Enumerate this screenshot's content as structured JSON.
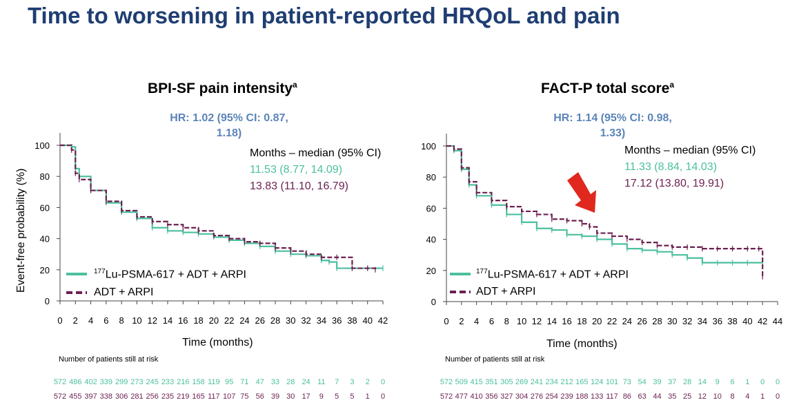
{
  "title": "Time to worsening in patient-reported HRQoL and pain",
  "colors": {
    "title": "#1f3e72",
    "hr": "#5b84b8",
    "lu": "#4bbf9e",
    "adt": "#6b1f4f",
    "arrow": "#e0281e"
  },
  "chart_data": [
    {
      "type": "line",
      "title": "BPI-SF pain intensity",
      "title_sup": "a",
      "hr_line1": "HR: 1.02 (95% CI: 0.87,",
      "hr_line2": "1.18)",
      "median_header": "Months – median (95% CI)",
      "ylabel": "Event-free probability (%)",
      "xlabel": "Time (months)",
      "ylim": [
        0,
        100
      ],
      "yticks": [
        "0",
        "20",
        "40",
        "60",
        "80",
        "100"
      ],
      "xlim": [
        0,
        42
      ],
      "xticks": [
        "0",
        "2",
        "4",
        "6",
        "8",
        "10",
        "12",
        "14",
        "16",
        "18",
        "20",
        "22",
        "24",
        "26",
        "28",
        "30",
        "32",
        "34",
        "36",
        "38",
        "40",
        "42"
      ],
      "series": [
        {
          "name_sup": "177",
          "name": "Lu-PSMA-617 + ADT + ARPI",
          "median": "11.53 (8.77, 14.09)",
          "x": [
            0,
            1.5,
            2,
            2.5,
            4,
            6,
            8,
            10,
            12,
            14,
            16,
            18,
            20,
            22,
            24,
            26,
            28,
            30,
            32,
            34,
            35,
            36,
            38,
            40,
            42
          ],
          "y": [
            100,
            99,
            85,
            80,
            71,
            63,
            57,
            53,
            47,
            45,
            44,
            43,
            41,
            39,
            37,
            35,
            32,
            30,
            29,
            26,
            25,
            21,
            21,
            21,
            21
          ]
        },
        {
          "name": "ADT + ARPI",
          "median": "13.83 (11.10, 16.79)",
          "x": [
            0,
            1.5,
            2,
            2.5,
            4,
            6,
            8,
            10,
            12,
            14,
            16,
            18,
            20,
            22,
            24,
            26,
            28,
            30,
            32,
            34,
            36,
            38,
            40,
            41
          ],
          "y": [
            100,
            97,
            82,
            78,
            71,
            64,
            58,
            54,
            51,
            49,
            47,
            45,
            42,
            40,
            38,
            37,
            34,
            32,
            30,
            28,
            28,
            21,
            21,
            20
          ]
        }
      ],
      "risk_title": "Number of patients still at risk",
      "risk_lu": [
        "572",
        "486",
        "402",
        "339",
        "299",
        "273",
        "245",
        "233",
        "216",
        "158",
        "119",
        "95",
        "71",
        "47",
        "33",
        "28",
        "24",
        "11",
        "7",
        "3",
        "2",
        "0"
      ],
      "risk_adt": [
        "572",
        "455",
        "397",
        "338",
        "306",
        "281",
        "256",
        "235",
        "219",
        "165",
        "117",
        "107",
        "75",
        "56",
        "39",
        "30",
        "17",
        "9",
        "5",
        "5",
        "1",
        "0"
      ]
    },
    {
      "type": "line",
      "title": "FACT-P total score",
      "title_sup": "a",
      "hr_line1": "HR: 1.14 (95% CI: 0.98,",
      "hr_line2": "1.33)",
      "median_header": "Months – median (95% CI)",
      "ylabel": "",
      "xlabel": "Time (months)",
      "ylim": [
        0,
        100
      ],
      "yticks": [
        "0",
        "20",
        "40",
        "60",
        "80",
        "100"
      ],
      "xlim": [
        0,
        44
      ],
      "xticks": [
        "0",
        "2",
        "4",
        "6",
        "8",
        "10",
        "12",
        "14",
        "16",
        "18",
        "20",
        "22",
        "24",
        "26",
        "28",
        "30",
        "32",
        "34",
        "36",
        "38",
        "40",
        "42",
        "44"
      ],
      "series": [
        {
          "name_sup": "177",
          "name": "Lu-PSMA-617 + ADT + ARPI",
          "median": "11.33 (8.84, 14.03)",
          "x": [
            0,
            1,
            2,
            3,
            4,
            6,
            8,
            10,
            12,
            14,
            16,
            18,
            20,
            22,
            24,
            26,
            28,
            30,
            32,
            34,
            36,
            38,
            40,
            42
          ],
          "y": [
            100,
            97,
            85,
            75,
            68,
            62,
            56,
            51,
            47,
            46,
            43,
            42,
            40,
            37,
            34,
            33,
            32,
            30,
            28,
            25,
            25,
            25,
            25,
            25
          ]
        },
        {
          "name": "ADT + ARPI",
          "median": "17.12 (13.80, 19.91)",
          "x": [
            0,
            1,
            2,
            3,
            4,
            6,
            8,
            10,
            12,
            14,
            16,
            18,
            19,
            20,
            22,
            24,
            26,
            28,
            30,
            32,
            34,
            36,
            38,
            40,
            41.5,
            42
          ],
          "y": [
            100,
            98,
            86,
            77,
            70,
            65,
            61,
            58,
            56,
            53,
            52,
            50,
            48,
            44,
            42,
            40,
            38,
            36,
            35,
            35,
            34,
            34,
            34,
            34,
            34,
            16
          ]
        }
      ],
      "risk_title": "Number of patients still at risk",
      "risk_lu": [
        "572",
        "509",
        "415",
        "351",
        "305",
        "269",
        "241",
        "234",
        "212",
        "165",
        "124",
        "101",
        "73",
        "54",
        "39",
        "37",
        "28",
        "14",
        "9",
        "6",
        "1",
        "0",
        "0"
      ],
      "risk_adt": [
        "572",
        "477",
        "410",
        "356",
        "327",
        "304",
        "276",
        "254",
        "239",
        "188",
        "133",
        "117",
        "86",
        "63",
        "44",
        "35",
        "25",
        "12",
        "10",
        "8",
        "4",
        "1",
        "0"
      ]
    }
  ]
}
